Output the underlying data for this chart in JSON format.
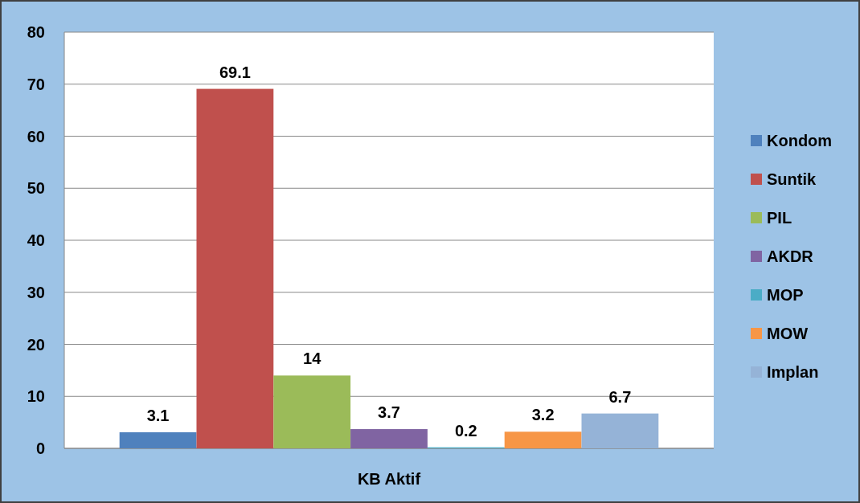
{
  "chart_data": {
    "type": "bar",
    "categories": [
      "KB Aktif"
    ],
    "series": [
      {
        "name": "Kondom",
        "color": "#4f81bd",
        "values": [
          3.1
        ]
      },
      {
        "name": "Suntik",
        "color": "#c0504d",
        "values": [
          69.1
        ]
      },
      {
        "name": "PIL",
        "color": "#9bbb59",
        "values": [
          14
        ]
      },
      {
        "name": "AKDR",
        "color": "#8064a2",
        "values": [
          3.7
        ]
      },
      {
        "name": "MOP",
        "color": "#4bacc6",
        "values": [
          0.2
        ]
      },
      {
        "name": "MOW",
        "color": "#f79646",
        "values": [
          3.2
        ]
      },
      {
        "name": "Implan",
        "color": "#95b3d7",
        "values": [
          6.7
        ]
      }
    ],
    "ylim": [
      0,
      80
    ],
    "yticks": [
      0,
      10,
      20,
      30,
      40,
      50,
      60,
      70,
      80
    ],
    "grid": "y",
    "legend": "right",
    "data_labels": true
  }
}
